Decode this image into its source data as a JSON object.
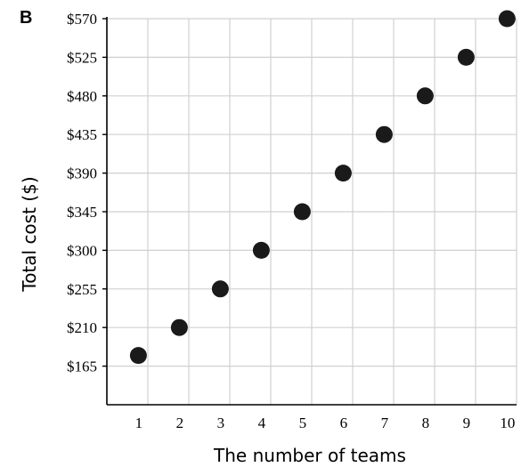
{
  "panel_label": "B",
  "chart_data": {
    "type": "scatter",
    "title": "",
    "xlabel": "The number of teams",
    "ylabel": "Total cost ($)",
    "x_ticks": [
      "1",
      "2",
      "3",
      "4",
      "5",
      "6",
      "7",
      "8",
      "9",
      "10"
    ],
    "y_ticks": [
      "$165",
      "$210",
      "$255",
      "$300",
      "$345",
      "$390",
      "$435",
      "$480",
      "$525",
      "$570"
    ],
    "x": [
      1,
      2,
      3,
      4,
      5,
      6,
      7,
      8,
      9,
      10
    ],
    "y": [
      165,
      210,
      255,
      300,
      345,
      390,
      435,
      480,
      525,
      570
    ],
    "xlim": [
      0,
      10
    ],
    "ylim": [
      120,
      570
    ],
    "grid": true,
    "legend": "none",
    "marker_color": "#1a1a1a",
    "grid_color": "#d0d0d0",
    "axis_color": "#000000"
  }
}
